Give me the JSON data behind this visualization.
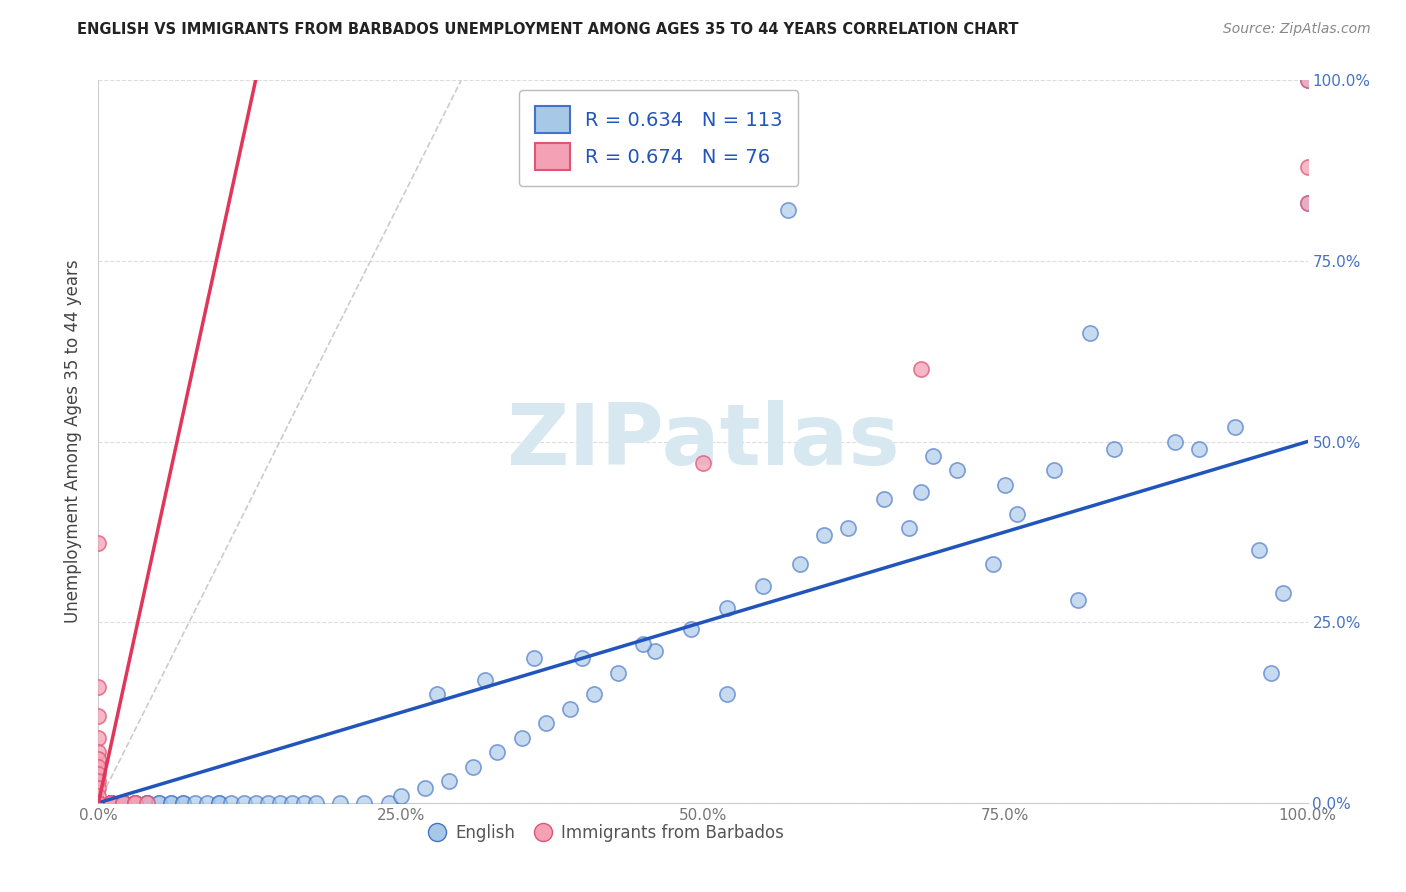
{
  "title": "ENGLISH VS IMMIGRANTS FROM BARBADOS UNEMPLOYMENT AMONG AGES 35 TO 44 YEARS CORRELATION CHART",
  "source": "Source: ZipAtlas.com",
  "ylabel": "Unemployment Among Ages 35 to 44 years",
  "xlim": [
    0,
    1.0
  ],
  "ylim": [
    0,
    1.0
  ],
  "xtick_labels": [
    "0.0%",
    "25.0%",
    "50.0%",
    "75.0%",
    "100.0%"
  ],
  "xtick_vals": [
    0,
    0.25,
    0.5,
    0.75,
    1.0
  ],
  "ytick_labels_right": [
    "100.0%",
    "75.0%",
    "50.0%",
    "25.0%",
    "0.0%"
  ],
  "ytick_vals": [
    1.0,
    0.75,
    0.5,
    0.25,
    0.0
  ],
  "legend_english": "English",
  "legend_immigrants": "Immigrants from Barbados",
  "R_english": 0.634,
  "N_english": 113,
  "R_immigrants": 0.674,
  "N_immigrants": 76,
  "english_color": "#a8c8e8",
  "immigrants_color": "#f4a0b5",
  "english_edge_color": "#4472c4",
  "immigrants_edge_color": "#e05575",
  "english_line_color": "#2255bb",
  "immigrants_line_color": "#e0365a",
  "ref_line_color": "#cccccc",
  "background_color": "#ffffff",
  "watermark": "ZIPatlas",
  "watermark_color": "#d8e8f0",
  "grid_color": "#dddddd",
  "title_color": "#222222",
  "source_color": "#888888",
  "tick_color": "#777777",
  "right_tick_color": "#4472c4",
  "ylabel_color": "#444444",
  "eng_trend_x0": 0.0,
  "eng_trend_y0": 0.0,
  "eng_trend_x1": 1.0,
  "eng_trend_y1": 0.5,
  "imm_trend_x0": 0.0,
  "imm_trend_y0": 0.0,
  "imm_trend_x1": 0.13,
  "imm_trend_y1": 1.0,
  "ref_line_x0": 0.0,
  "ref_line_y0": 0.0,
  "ref_line_x1": 0.3,
  "ref_line_y1": 1.0,
  "eng_x": [
    0.0,
    0.0,
    0.0,
    0.0,
    0.0,
    0.0,
    0.0,
    0.0,
    0.0,
    0.0,
    0.0,
    0.0,
    0.0,
    0.0,
    0.0,
    0.0,
    0.0,
    0.0,
    0.0,
    0.0,
    0.0,
    0.0,
    0.0,
    0.0,
    0.0,
    0.0,
    0.0,
    0.0,
    0.0,
    0.01,
    0.01,
    0.01,
    0.01,
    0.01,
    0.01,
    0.01,
    0.01,
    0.02,
    0.02,
    0.02,
    0.02,
    0.02,
    0.03,
    0.03,
    0.03,
    0.04,
    0.04,
    0.04,
    0.05,
    0.05,
    0.06,
    0.06,
    0.07,
    0.07,
    0.08,
    0.09,
    0.1,
    0.1,
    0.11,
    0.12,
    0.13,
    0.14,
    0.15,
    0.16,
    0.17,
    0.18,
    0.2,
    0.22,
    0.24,
    0.25,
    0.27,
    0.29,
    0.31,
    0.33,
    0.35,
    0.37,
    0.39,
    0.41,
    0.43,
    0.46,
    0.49,
    0.52,
    0.55,
    0.58,
    0.62,
    0.65,
    0.68,
    0.71,
    0.75,
    0.79,
    0.84,
    0.89,
    0.94,
    0.97,
    1.0,
    1.0,
    0.57,
    0.69,
    0.76,
    0.82,
    0.91,
    0.96,
    0.98,
    0.74,
    0.81,
    0.67,
    0.6,
    0.52,
    0.45,
    0.4,
    0.36,
    0.32,
    0.28
  ],
  "eng_y": [
    0.0,
    0.0,
    0.0,
    0.0,
    0.0,
    0.0,
    0.0,
    0.0,
    0.0,
    0.0,
    0.0,
    0.0,
    0.0,
    0.0,
    0.0,
    0.0,
    0.0,
    0.0,
    0.0,
    0.0,
    0.0,
    0.0,
    0.0,
    0.0,
    0.0,
    0.0,
    0.0,
    0.0,
    0.0,
    0.0,
    0.0,
    0.0,
    0.0,
    0.0,
    0.0,
    0.0,
    0.0,
    0.0,
    0.0,
    0.0,
    0.0,
    0.0,
    0.0,
    0.0,
    0.0,
    0.0,
    0.0,
    0.0,
    0.0,
    0.0,
    0.0,
    0.0,
    0.0,
    0.0,
    0.0,
    0.0,
    0.0,
    0.0,
    0.0,
    0.0,
    0.0,
    0.0,
    0.0,
    0.0,
    0.0,
    0.0,
    0.0,
    0.0,
    0.0,
    0.01,
    0.02,
    0.03,
    0.05,
    0.07,
    0.09,
    0.11,
    0.13,
    0.15,
    0.18,
    0.21,
    0.24,
    0.27,
    0.3,
    0.33,
    0.38,
    0.42,
    0.43,
    0.46,
    0.44,
    0.46,
    0.49,
    0.5,
    0.52,
    0.18,
    0.83,
    1.0,
    0.82,
    0.48,
    0.4,
    0.65,
    0.49,
    0.35,
    0.29,
    0.33,
    0.28,
    0.38,
    0.37,
    0.15,
    0.22,
    0.2,
    0.2,
    0.17,
    0.15
  ],
  "imm_x": [
    0.0,
    0.0,
    0.0,
    0.0,
    0.0,
    0.0,
    0.0,
    0.0,
    0.0,
    0.0,
    0.0,
    0.0,
    0.0,
    0.0,
    0.0,
    0.0,
    0.0,
    0.0,
    0.0,
    0.0,
    0.0,
    0.0,
    0.0,
    0.0,
    0.0,
    0.0,
    0.0,
    0.0,
    0.0,
    0.0,
    0.0,
    0.0,
    0.0,
    0.0,
    0.0,
    0.0,
    0.0,
    0.0,
    0.0,
    0.0,
    0.0,
    0.0,
    0.0,
    0.0,
    0.0,
    0.0,
    0.0,
    0.0,
    0.0,
    0.0,
    0.0,
    0.0,
    0.0,
    0.0,
    0.0,
    0.0,
    0.0,
    0.0,
    0.0,
    0.0,
    0.0,
    0.0,
    0.0,
    0.01,
    0.01,
    0.01,
    0.02,
    0.02,
    0.03,
    0.03,
    0.04,
    0.5,
    0.68,
    1.0,
    1.0,
    1.0
  ],
  "imm_y": [
    0.0,
    0.0,
    0.0,
    0.0,
    0.0,
    0.0,
    0.0,
    0.0,
    0.0,
    0.0,
    0.0,
    0.0,
    0.0,
    0.0,
    0.0,
    0.0,
    0.0,
    0.0,
    0.0,
    0.0,
    0.0,
    0.0,
    0.0,
    0.0,
    0.0,
    0.0,
    0.0,
    0.0,
    0.0,
    0.0,
    0.0,
    0.0,
    0.0,
    0.0,
    0.0,
    0.0,
    0.0,
    0.0,
    0.0,
    0.0,
    0.0,
    0.0,
    0.0,
    0.0,
    0.0,
    0.0,
    0.0,
    0.0,
    0.0,
    0.0,
    0.36,
    0.16,
    0.12,
    0.09,
    0.07,
    0.06,
    0.05,
    0.04,
    0.03,
    0.02,
    0.01,
    0.0,
    0.0,
    0.0,
    0.0,
    0.0,
    0.0,
    0.0,
    0.0,
    0.0,
    0.0,
    0.47,
    0.6,
    0.83,
    0.88,
    1.0
  ]
}
